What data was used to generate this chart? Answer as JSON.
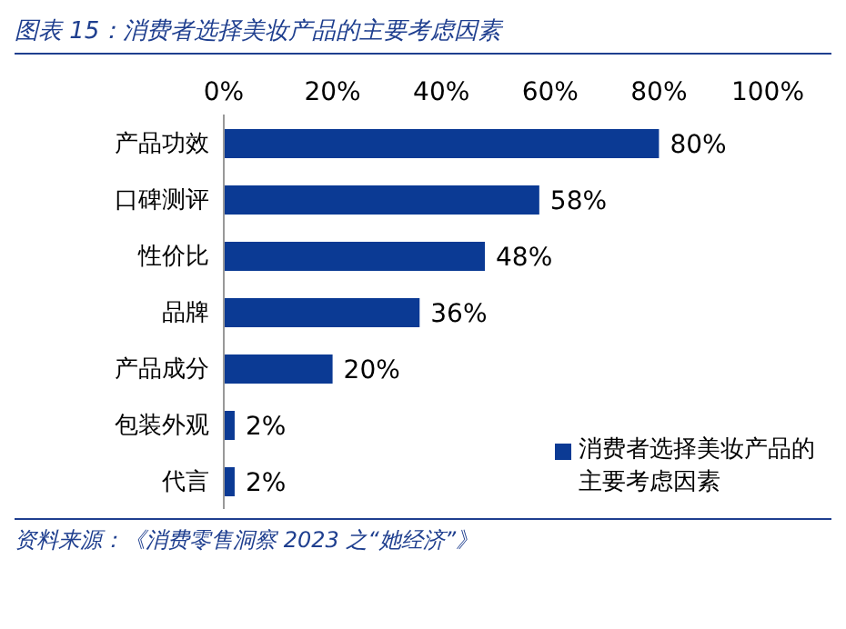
{
  "chart_data": {
    "type": "bar",
    "orientation": "horizontal",
    "title": "图表 15：消费者选择美妆产品的主要考虑因素",
    "categories": [
      "产品功效",
      "口碑测评",
      "性价比",
      "品牌",
      "产品成分",
      "包装外观",
      "代言"
    ],
    "series": [
      {
        "name": "消费者选择美妆产品的主要考虑因素",
        "color": "#0b3a94",
        "values": [
          80,
          58,
          48,
          36,
          20,
          2,
          2
        ],
        "value_labels": [
          "80%",
          "58%",
          "48%",
          "36%",
          "20%",
          "2%",
          "2%"
        ]
      }
    ],
    "xlim": [
      0,
      100
    ],
    "xticks": [
      {
        "value": 0,
        "label": "0%"
      },
      {
        "value": 20,
        "label": "20%"
      },
      {
        "value": 40,
        "label": "40%"
      },
      {
        "value": 60,
        "label": "60%"
      },
      {
        "value": 80,
        "label": "80%"
      },
      {
        "value": 100,
        "label": "100%"
      }
    ],
    "grid": false,
    "legend": "bottom right",
    "annotations": [
      "资料来源：《消费零售洞察 2023 之“她经济”》"
    ]
  }
}
